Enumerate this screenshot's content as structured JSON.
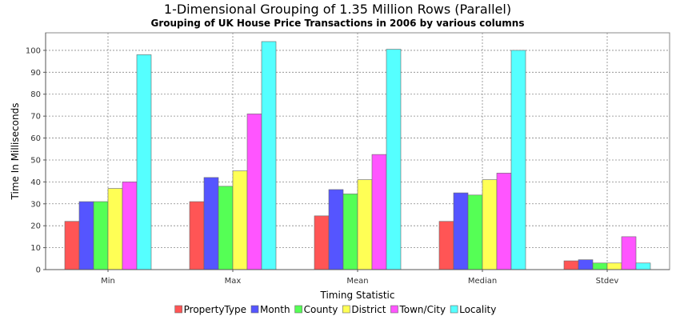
{
  "chart_data": {
    "type": "bar",
    "title": "1-Dimensional Grouping of 1.35 Million Rows (Parallel)",
    "subtitle": "Grouping of UK House Price Transactions in 2006 by various columns",
    "xlabel": "Timing Statistic",
    "ylabel": "Time In Milliseconds",
    "ylim": [
      0,
      108
    ],
    "yticks": [
      0,
      10,
      20,
      30,
      40,
      50,
      60,
      70,
      80,
      90,
      100
    ],
    "grid": true,
    "legend_position": "bottom",
    "categories": [
      "Min",
      "Max",
      "Mean",
      "Median",
      "Stdev"
    ],
    "series": [
      {
        "name": "PropertyType",
        "color": "#ff5555",
        "values": [
          22,
          31,
          24.5,
          22,
          4
        ]
      },
      {
        "name": "Month",
        "color": "#5555ff",
        "values": [
          31,
          42,
          36.5,
          35,
          4.5
        ]
      },
      {
        "name": "County",
        "color": "#55ff55",
        "values": [
          31,
          38,
          34.5,
          34,
          3
        ]
      },
      {
        "name": "District",
        "color": "#ffff55",
        "values": [
          37,
          45,
          41,
          41,
          3
        ]
      },
      {
        "name": "Town/City",
        "color": "#ff55ff",
        "values": [
          40,
          71,
          52.5,
          44,
          15
        ]
      },
      {
        "name": "Locality",
        "color": "#55ffff",
        "values": [
          98,
          104,
          100.5,
          100,
          3
        ]
      }
    ]
  }
}
